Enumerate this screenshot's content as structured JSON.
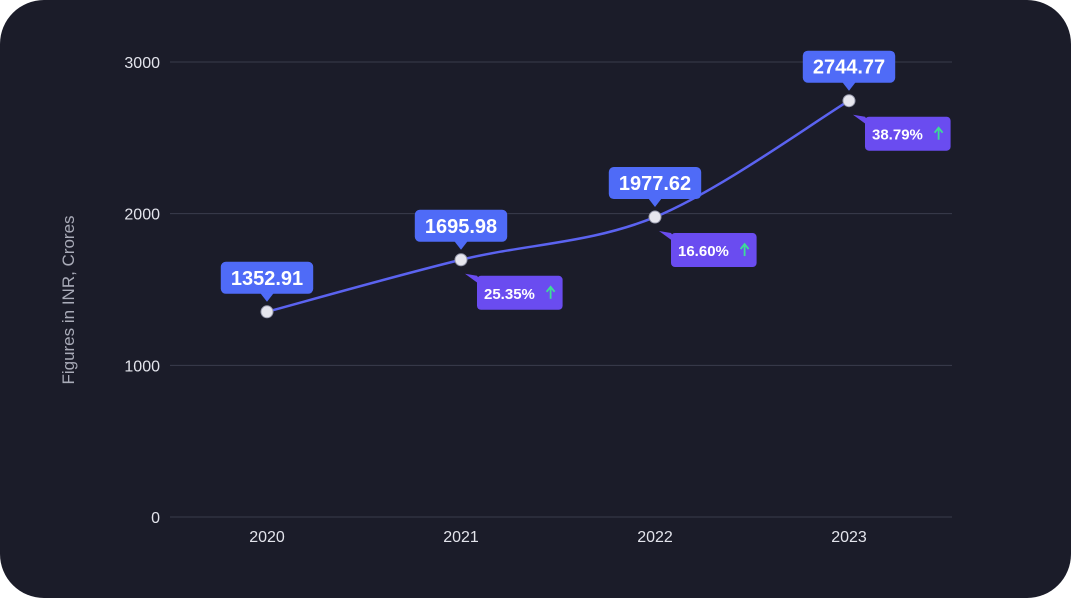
{
  "chart_data": {
    "type": "line",
    "x": [
      "2020",
      "2021",
      "2022",
      "2023"
    ],
    "series": [
      {
        "values": [
          1352.91,
          1695.98,
          1977.62,
          2744.77
        ]
      }
    ],
    "value_labels": [
      "1352.91",
      "1695.98",
      "1977.62",
      "2744.77"
    ],
    "growth_labels": [
      "",
      "25.35%",
      "16.60%",
      "38.79%"
    ],
    "ylabel": "Figures in INR, Crores",
    "ylim": [
      0,
      3000
    ],
    "yticks": [
      0,
      1000,
      2000,
      3000
    ],
    "grid": true,
    "colors": {
      "background": "#1b1c29",
      "line": "#5b63f0",
      "value_label": "#4f6bf7",
      "growth_label": "#6a4cf0",
      "arrow": "#3ddc97",
      "grid": "#3a3c4c",
      "marker": "#e6e6ee"
    }
  }
}
